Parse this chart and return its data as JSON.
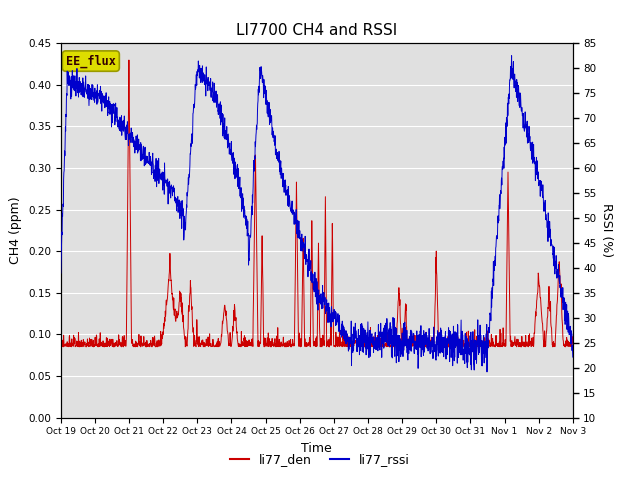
{
  "title": "LI7700 CH4 and RSSI",
  "xlabel": "Time",
  "ylabel_left": "CH4 (ppm)",
  "ylabel_right": "RSSI (%)",
  "ylim_left": [
    0.0,
    0.45
  ],
  "ylim_right": [
    10,
    85
  ],
  "yticks_left": [
    0.0,
    0.05,
    0.1,
    0.15,
    0.2,
    0.25,
    0.3,
    0.35,
    0.4,
    0.45
  ],
  "yticks_right": [
    10,
    15,
    20,
    25,
    30,
    35,
    40,
    45,
    50,
    55,
    60,
    65,
    70,
    75,
    80,
    85
  ],
  "xtick_labels": [
    "Oct 19",
    "Oct 20",
    "Oct 21",
    "Oct 22",
    "Oct 23",
    "Oct 24",
    "Oct 25",
    "Oct 26",
    "Oct 27",
    "Oct 28",
    "Oct 29",
    "Oct 30",
    "Oct 31",
    "Nov 1",
    "Nov 2",
    "Nov 3"
  ],
  "color_ch4": "#cc0000",
  "color_rssi": "#0000cc",
  "legend_label_ch4": "li77_den",
  "legend_label_rssi": "li77_rssi",
  "annotation_text": "EE_flux",
  "annotation_bg": "#dddd00",
  "annotation_edge": "#999900",
  "background_color": "#e0e0e0",
  "grid_color": "#ffffff",
  "title_fontsize": 11,
  "label_fontsize": 9,
  "tick_fontsize": 7.5,
  "legend_fontsize": 9
}
